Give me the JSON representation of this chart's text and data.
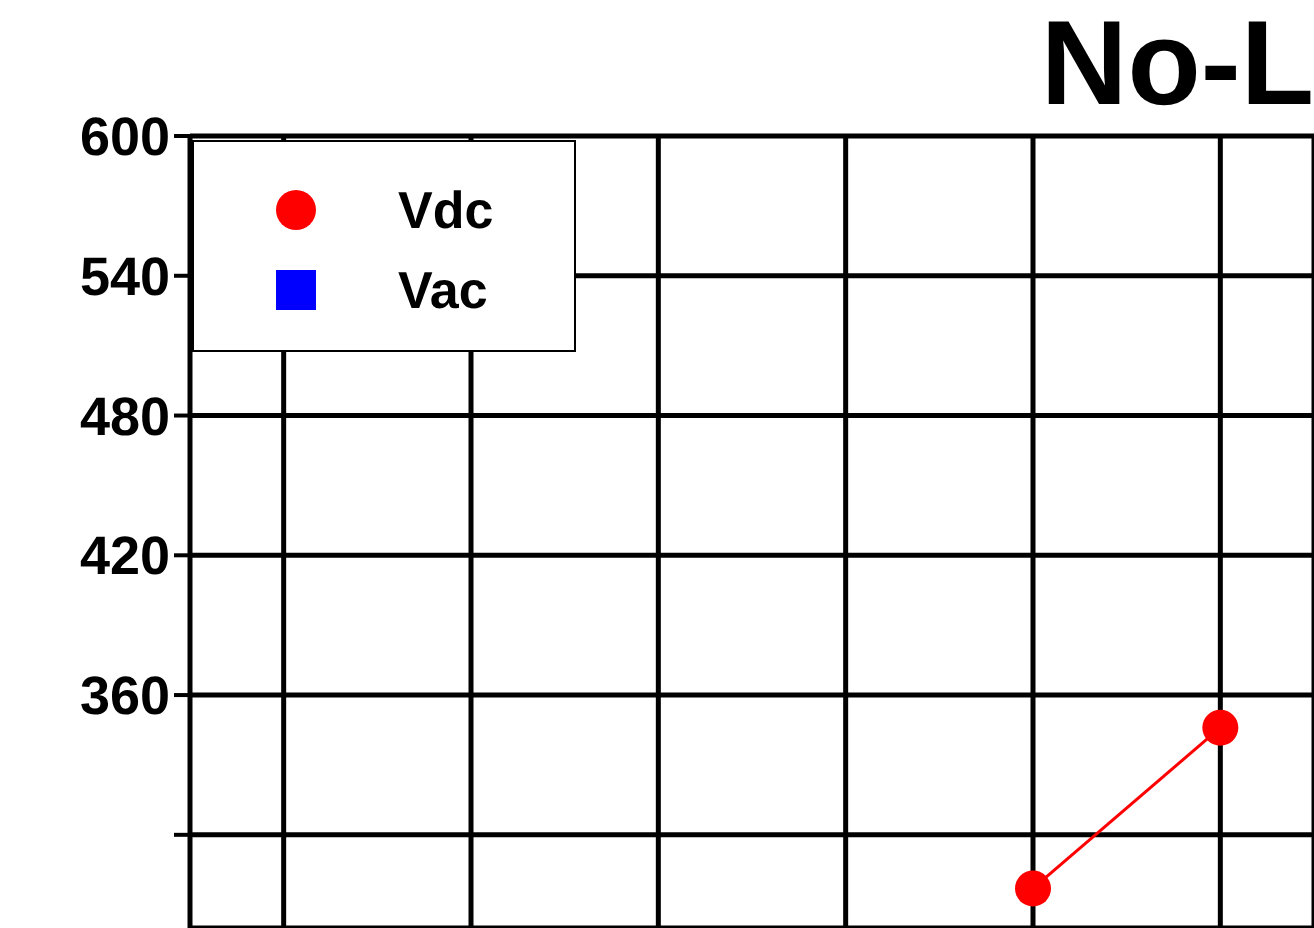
{
  "chart_data": {
    "type": "line",
    "title": "No-L",
    "categories": [
      null,
      null,
      null,
      null,
      null,
      null
    ],
    "ylim": [
      260,
      600
    ],
    "yticks": [
      {
        "value": 300,
        "label": null
      },
      360,
      420,
      480,
      540,
      600
    ],
    "tick_labels": "y",
    "grid": true,
    "legend": "top left",
    "line_style": "solid",
    "series": [
      {
        "name": "Vdc",
        "color": "#ff0000",
        "marker": "circle",
        "values": [
          null,
          null,
          null,
          null,
          277,
          346
        ]
      },
      {
        "name": "Vac",
        "color": "#0000ff",
        "marker": "square",
        "values": [
          null,
          null,
          null,
          null,
          null,
          null
        ]
      }
    ]
  }
}
